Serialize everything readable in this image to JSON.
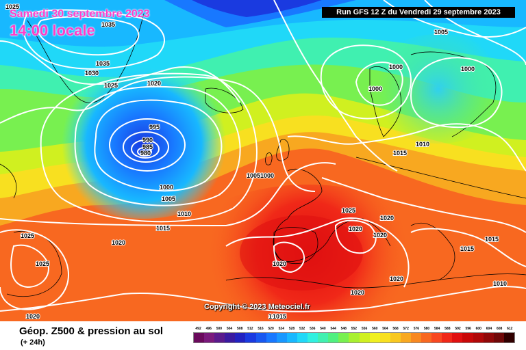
{
  "overlay": {
    "date": "Samedi 30 septembre 2023",
    "time": "14:00 locale",
    "run_info": "Run GFS 12 Z du Vendredi 29 septembre 2023",
    "copyright": "Copyright © 2023 Meteociel.fr"
  },
  "legend": {
    "title": "Géop. Z500 & pression au sol",
    "subtitle": "(+ 24h)",
    "scale_values": [
      "492",
      "496",
      "500",
      "504",
      "508",
      "512",
      "516",
      "520",
      "524",
      "528",
      "532",
      "536",
      "540",
      "544",
      "548",
      "552",
      "556",
      "560",
      "564",
      "568",
      "572",
      "576",
      "580",
      "584",
      "588",
      "592",
      "596",
      "600",
      "604",
      "608",
      "612"
    ],
    "scale_colors": [
      "#6a0a5c",
      "#7a1a7c",
      "#5a1a8c",
      "#3a1aa0",
      "#2222c0",
      "#1a3ae0",
      "#1858f0",
      "#1878ff",
      "#1898ff",
      "#18b8ff",
      "#20d8f8",
      "#30f0e0",
      "#40f0b0",
      "#50f080",
      "#78f050",
      "#a8f030",
      "#d0f020",
      "#f0f020",
      "#f8e020",
      "#f8c820",
      "#f8a820",
      "#f88820",
      "#f86820",
      "#f84820",
      "#f02818",
      "#e01010",
      "#c80808",
      "#b00808",
      "#900808",
      "#700808",
      "#300000"
    ]
  },
  "pressure_labels": [
    {
      "text": "1025"
    },
    {
      "text": "1035"
    },
    {
      "text": "1035"
    },
    {
      "text": "1030"
    },
    {
      "text": "1025"
    },
    {
      "text": "1020"
    },
    {
      "text": "995"
    },
    {
      "text": "990"
    },
    {
      "text": "985"
    },
    {
      "text": "980"
    },
    {
      "text": "1000"
    },
    {
      "text": "1005"
    },
    {
      "text": "1010"
    },
    {
      "text": "1015"
    },
    {
      "text": "1020"
    },
    {
      "text": "1025"
    },
    {
      "text": "1025"
    },
    {
      "text": "1020"
    },
    {
      "text": "1005"
    },
    {
      "text": "1000"
    },
    {
      "text": "1000"
    },
    {
      "text": "1000"
    },
    {
      "text": "1005"
    },
    {
      "text": "1015"
    },
    {
      "text": "1010"
    },
    {
      "text": "1025"
    },
    {
      "text": "1020"
    },
    {
      "text": "1020"
    },
    {
      "text": "1020"
    },
    {
      "text": "1020"
    },
    {
      "text": "1020"
    },
    {
      "text": "1020"
    },
    {
      "text": "1020"
    },
    {
      "text": "1015"
    },
    {
      "text": "1015"
    },
    {
      "text": "1010"
    },
    {
      "text": "1015"
    },
    {
      "text": "1000"
    },
    {
      "text": "1005"
    }
  ]
}
